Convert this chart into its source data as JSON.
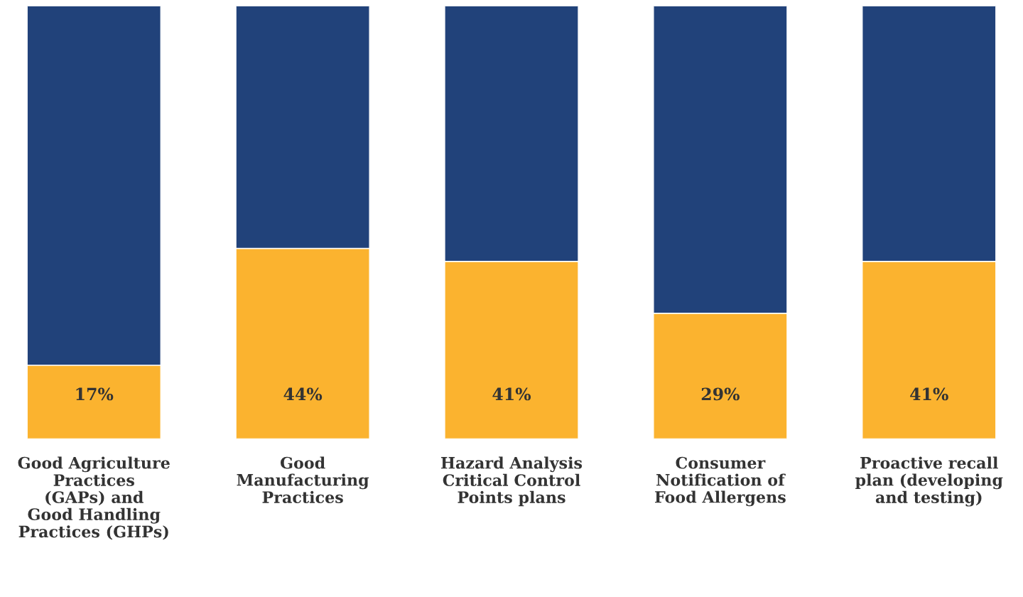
{
  "chart_data": {
    "type": "bar",
    "stacked": true,
    "ylim": [
      0,
      100
    ],
    "tick_labels": "x",
    "categories": [
      "Good Agriculture\nPractices\n(GAPs) and\nGood Handling\nPractices (GHPs)",
      "Good\nManufacturing\nPractices",
      "Hazard Analysis\nCritical Control\nPoints plans",
      "Consumer\nNotification of\nFood Allergens",
      "Proactive recall\nplan (developing\nand testing)"
    ],
    "series": [
      {
        "color": "#fbb32f",
        "values": [
          17,
          44,
          41,
          29,
          41
        ],
        "value_labels": [
          "17%",
          "44%",
          "41%",
          "29%",
          "41%"
        ]
      },
      {
        "color": "#21427a",
        "values": [
          83,
          56,
          59,
          71,
          59
        ]
      }
    ]
  }
}
